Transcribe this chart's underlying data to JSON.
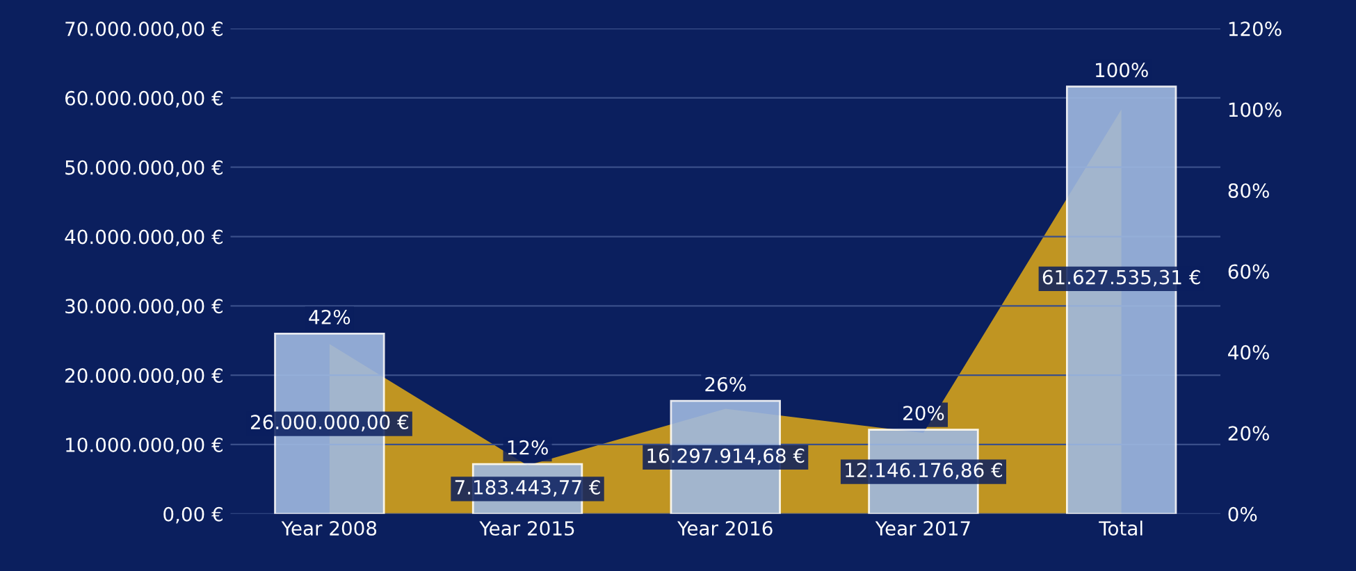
{
  "chart_data": {
    "type": "bar",
    "categories": [
      "Year 2008",
      "Year 2015",
      "Year 2016",
      "Year 2017",
      "Total"
    ],
    "series": [
      {
        "color": "#9fb9e0",
        "values": [
          26000000.0,
          7183443.77,
          16297914.68,
          12146176.86,
          61627535.31
        ],
        "value_labels": [
          "26.000.000,00 €",
          "7.183.443,77 €",
          "16.297.914,68 €",
          "12.146.176,86 €",
          "61.627.535,31 €"
        ]
      },
      {
        "type": "area",
        "axis": "y2",
        "color": "#d4a21c",
        "values": [
          42,
          12,
          26,
          20,
          100
        ],
        "value_labels": [
          "42%",
          "12%",
          "26%",
          "20%",
          "100%"
        ]
      }
    ],
    "ylim": [
      0,
      70000000
    ],
    "yticks": [
      {
        "value": 0,
        "label": "0,00 €"
      },
      {
        "value": 10000000,
        "label": "10.000.000,00 €"
      },
      {
        "value": 20000000,
        "label": "20.000.000,00 €"
      },
      {
        "value": 30000000,
        "label": "30.000.000,00 €"
      },
      {
        "value": 40000000,
        "label": "40.000.000,00 €"
      },
      {
        "value": 50000000,
        "label": "50.000.000,00 €"
      },
      {
        "value": 60000000,
        "label": "60.000.000,00 €"
      },
      {
        "value": 70000000,
        "label": "70.000.000,00 €"
      }
    ],
    "y2lim": [
      0,
      120
    ],
    "y2ticks": [
      {
        "value": 0,
        "label": "0%"
      },
      {
        "value": 20,
        "label": "20%"
      },
      {
        "value": 40,
        "label": "40%"
      },
      {
        "value": 60,
        "label": "60%"
      },
      {
        "value": 80,
        "label": "80%"
      },
      {
        "value": 100,
        "label": "100%"
      },
      {
        "value": 120,
        "label": "120%"
      }
    ],
    "grid": "y",
    "legend": false
  }
}
